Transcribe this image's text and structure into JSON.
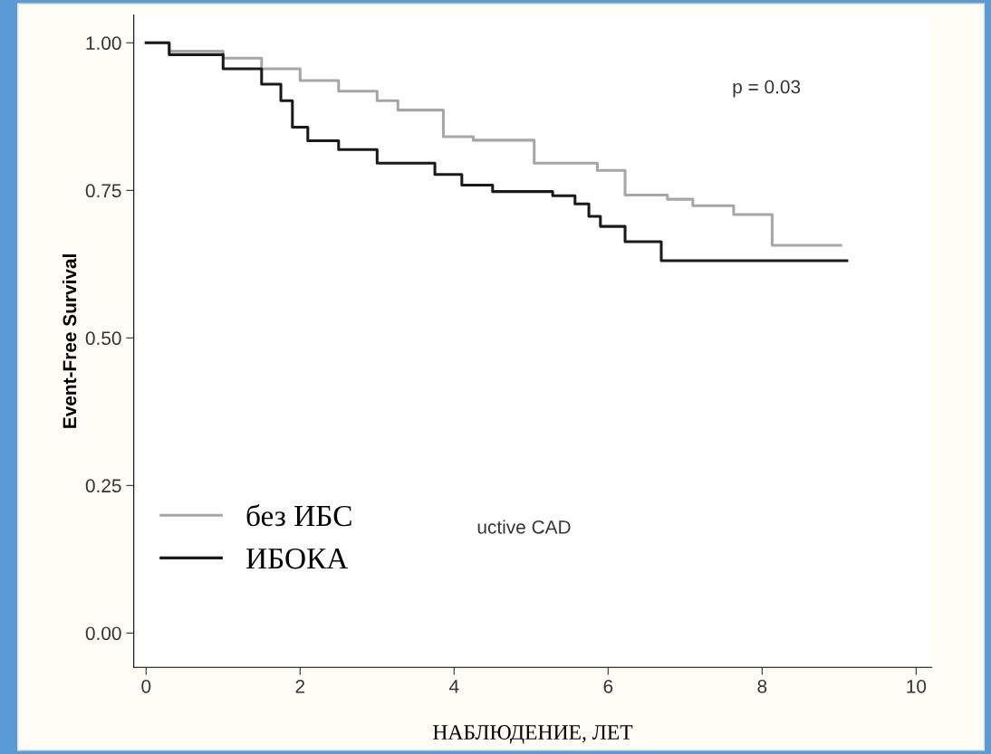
{
  "chart_data": {
    "type": "step",
    "ylabel": "Event-Free Survival",
    "xlabel": "НАБЛЮДЕНИЕ, ЛЕТ",
    "xlim": [
      -0.16,
      10.2
    ],
    "xticks": [
      0,
      2,
      4,
      6,
      8,
      10
    ],
    "ylim": [
      -0.058,
      1.047
    ],
    "yticks": [
      {
        "value": 0,
        "label": "0.00"
      },
      {
        "value": 0.25,
        "label": "0.25"
      },
      {
        "value": 0.5,
        "label": "0.50"
      },
      {
        "value": 0.75,
        "label": "0.75"
      },
      {
        "value": 1,
        "label": "1.00"
      }
    ],
    "grid": false,
    "legend": "bottom left",
    "series": [
      {
        "name": "без ИБС",
        "color": "#a6a6a6",
        "x": [
          0,
          0.3,
          1,
          1.5,
          2,
          2.5,
          3,
          3.27,
          3.86,
          4.25,
          5.04,
          5.86,
          6.22,
          6.77,
          7.1,
          7.63,
          8.13,
          9.02
        ],
        "values": [
          1.0,
          0.986,
          0.974,
          0.956,
          0.936,
          0.918,
          0.902,
          0.886,
          0.841,
          0.835,
          0.796,
          0.784,
          0.742,
          0.735,
          0.724,
          0.709,
          0.657,
          0.657
        ]
      },
      {
        "name": "ИБОКА",
        "color": "#1a1a1a",
        "x": [
          0,
          0.3,
          1,
          1.5,
          1.75,
          1.9,
          2.1,
          2.5,
          3.0,
          3.75,
          4.1,
          4.5,
          5.28,
          5.57,
          5.75,
          5.9,
          6.22,
          6.69,
          9.1
        ],
        "values": [
          1.0,
          0.98,
          0.956,
          0.93,
          0.902,
          0.857,
          0.834,
          0.819,
          0.796,
          0.777,
          0.759,
          0.748,
          0.741,
          0.727,
          0.706,
          0.689,
          0.663,
          0.631,
          0.631
        ]
      }
    ],
    "annotations": [
      "p = 0.03",
      "uctive CAD"
    ]
  }
}
